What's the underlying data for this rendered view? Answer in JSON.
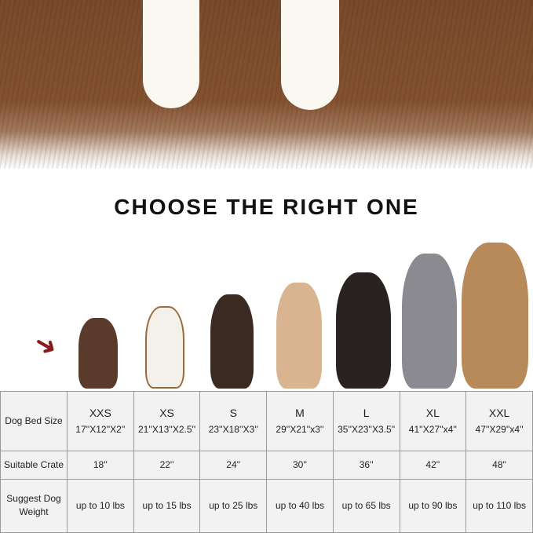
{
  "title": "CHOOSE THE RIGHT ONE",
  "colors": {
    "fur": "#7a4a2c",
    "arrow": "#8b1a1a",
    "table_bg": "#f2f2f2"
  },
  "table": {
    "row_headers": [
      "Dog Bed Size",
      "Suitable Crate",
      "Suggest Dog Weight"
    ],
    "sizes": [
      {
        "label": "XXS",
        "dims": "17''X12''X2''",
        "crate": "18''",
        "weight": "up to 10 lbs"
      },
      {
        "label": "XS",
        "dims": "21''X13''X2.5''",
        "crate": "22''",
        "weight": "up to 15 lbs"
      },
      {
        "label": "S",
        "dims": "23''X18''X3''",
        "crate": "24''",
        "weight": "up to 25 lbs"
      },
      {
        "label": "M",
        "dims": "29''X21''x3''",
        "crate": "30''",
        "weight": "up to 40 lbs"
      },
      {
        "label": "L",
        "dims": "35''X23''X3.5''",
        "crate": "36''",
        "weight": "up to 65 lbs"
      },
      {
        "label": "XL",
        "dims": "41''X27''x4''",
        "crate": "42''",
        "weight": "up to 90 lbs"
      },
      {
        "label": "XXL",
        "dims": "47''X29''x4''",
        "crate": "48''",
        "weight": "up to 110 lbs"
      }
    ]
  }
}
